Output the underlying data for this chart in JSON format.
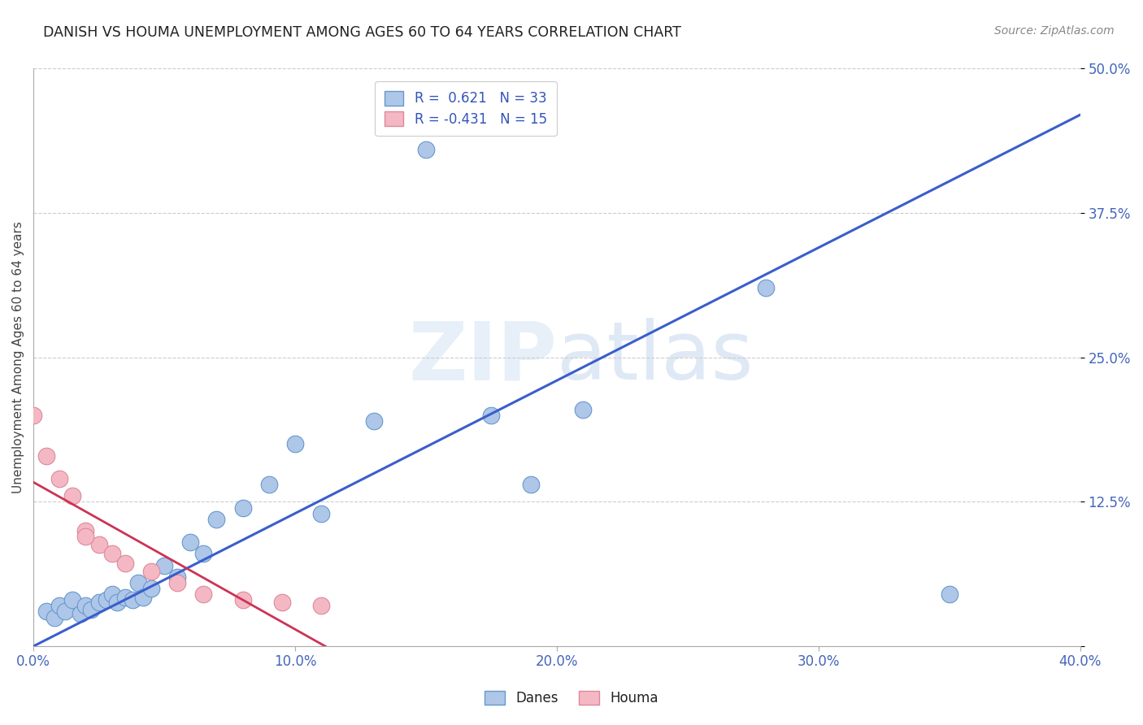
{
  "title": "DANISH VS HOUMA UNEMPLOYMENT AMONG AGES 60 TO 64 YEARS CORRELATION CHART",
  "source": "Source: ZipAtlas.com",
  "ylabel_label": "Unemployment Among Ages 60 to 64 years",
  "xlim": [
    0.0,
    0.4
  ],
  "ylim": [
    0.0,
    0.5
  ],
  "xticks": [
    0.0,
    0.1,
    0.2,
    0.3,
    0.4
  ],
  "xtick_labels": [
    "0.0%",
    "10.0%",
    "20.0%",
    "30.0%",
    "40.0%"
  ],
  "yticks": [
    0.0,
    0.125,
    0.25,
    0.375,
    0.5
  ],
  "ytick_labels": [
    "",
    "12.5%",
    "25.0%",
    "37.5%",
    "50.0%"
  ],
  "danes_R": 0.621,
  "danes_N": 33,
  "houma_R": -0.431,
  "houma_N": 15,
  "danes_color": "#aec6e8",
  "danes_edge_color": "#6699cc",
  "houma_color": "#f4b8c4",
  "houma_edge_color": "#dd8899",
  "danes_line_color": "#3a5ecc",
  "houma_line_color": "#cc3355",
  "watermark_zip": "ZIP",
  "watermark_atlas": "atlas",
  "danes_x": [
    0.005,
    0.008,
    0.01,
    0.012,
    0.015,
    0.018,
    0.02,
    0.022,
    0.025,
    0.028,
    0.03,
    0.032,
    0.035,
    0.038,
    0.04,
    0.042,
    0.045,
    0.05,
    0.055,
    0.06,
    0.065,
    0.07,
    0.08,
    0.09,
    0.1,
    0.11,
    0.13,
    0.15,
    0.175,
    0.19,
    0.21,
    0.28,
    0.35
  ],
  "danes_y": [
    0.03,
    0.025,
    0.035,
    0.03,
    0.04,
    0.028,
    0.035,
    0.032,
    0.038,
    0.04,
    0.045,
    0.038,
    0.042,
    0.04,
    0.055,
    0.042,
    0.05,
    0.07,
    0.06,
    0.09,
    0.08,
    0.11,
    0.12,
    0.14,
    0.175,
    0.115,
    0.195,
    0.43,
    0.2,
    0.14,
    0.205,
    0.31,
    0.045
  ],
  "houma_x": [
    0.0,
    0.005,
    0.01,
    0.015,
    0.02,
    0.025,
    0.03,
    0.035,
    0.045,
    0.055,
    0.065,
    0.08,
    0.095,
    0.11,
    0.02
  ],
  "houma_y": [
    0.2,
    0.165,
    0.145,
    0.13,
    0.1,
    0.088,
    0.08,
    0.072,
    0.065,
    0.055,
    0.045,
    0.04,
    0.038,
    0.035,
    0.095
  ]
}
